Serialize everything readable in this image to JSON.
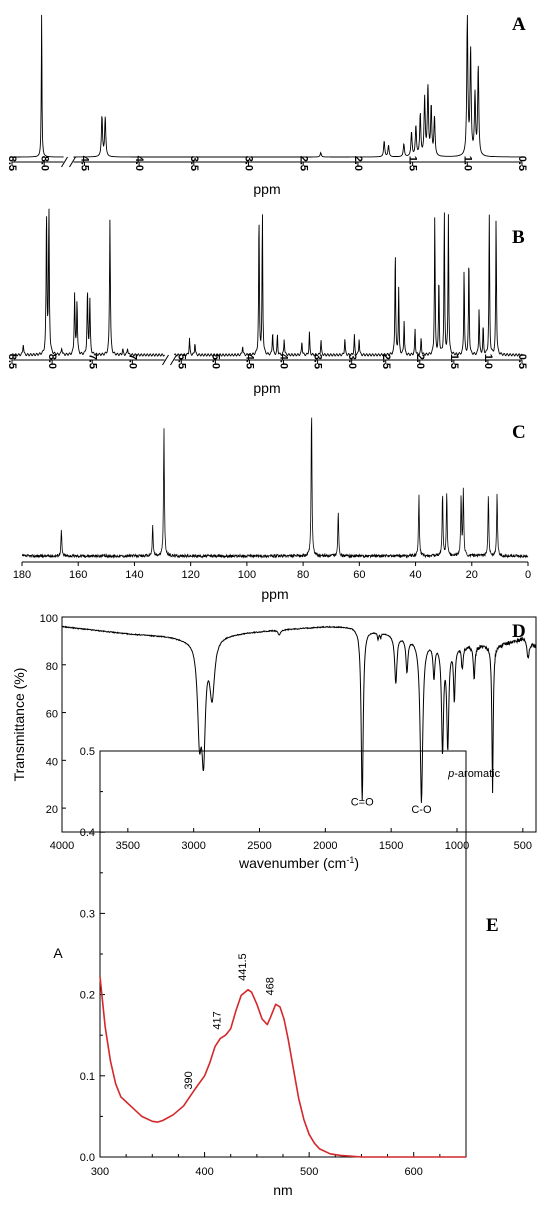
{
  "chart_data": [
    {
      "panel": "A",
      "type": "line",
      "xlabel": "ppm",
      "xlim": [
        8.5,
        0.5
      ],
      "reversed": true,
      "axis_break": [
        7.7,
        4.6
      ],
      "x_ticks": [
        "8.5",
        "8.0",
        "4.5",
        "4.0",
        "3.5",
        "3.0",
        "2.5",
        "2.0",
        "1.5",
        "1.0",
        "0.5"
      ],
      "peaks": [
        {
          "ppm": 8.04,
          "height": 0.98
        },
        {
          "ppm": 4.34,
          "height": 0.28
        },
        {
          "ppm": 4.31,
          "height": 0.27
        },
        {
          "ppm": 2.34,
          "height": 0.03
        },
        {
          "ppm": 1.76,
          "height": 0.11
        },
        {
          "ppm": 1.72,
          "height": 0.08
        },
        {
          "ppm": 1.58,
          "height": 0.09
        },
        {
          "ppm": 1.51,
          "height": 0.17
        },
        {
          "ppm": 1.47,
          "height": 0.21
        },
        {
          "ppm": 1.43,
          "height": 0.29
        },
        {
          "ppm": 1.39,
          "height": 0.4
        },
        {
          "ppm": 1.36,
          "height": 0.48
        },
        {
          "ppm": 1.33,
          "height": 0.34
        },
        {
          "ppm": 1.3,
          "height": 0.27
        },
        {
          "ppm": 1.0,
          "height": 0.95
        },
        {
          "ppm": 0.97,
          "height": 0.73
        },
        {
          "ppm": 0.93,
          "height": 0.42
        },
        {
          "ppm": 0.9,
          "height": 0.62
        }
      ]
    },
    {
      "panel": "B",
      "type": "line",
      "xlabel": "ppm",
      "xlim": [
        8.5,
        0.5
      ],
      "reversed": true,
      "axis_break": [
        6.6,
        5.6
      ],
      "x_ticks": [
        "8.5",
        "8.0",
        "7.5",
        "7.0",
        "5.5",
        "5.0",
        "4.5",
        "4.0",
        "3.5",
        "3.0",
        "2.5",
        "2.0",
        "1.5",
        "1.0",
        "0.5"
      ],
      "peaks": [
        {
          "ppm": 8.36,
          "height": 0.08
        },
        {
          "ppm": 8.07,
          "height": 1.0
        },
        {
          "ppm": 8.04,
          "height": 1.0
        },
        {
          "ppm": 7.88,
          "height": 0.05
        },
        {
          "ppm": 7.72,
          "height": 0.43
        },
        {
          "ppm": 7.69,
          "height": 0.38
        },
        {
          "ppm": 7.56,
          "height": 0.45
        },
        {
          "ppm": 7.53,
          "height": 0.39
        },
        {
          "ppm": 7.28,
          "height": 0.97
        },
        {
          "ppm": 7.12,
          "height": 0.04
        },
        {
          "ppm": 7.06,
          "height": 0.05
        },
        {
          "ppm": 5.38,
          "height": 0.12
        },
        {
          "ppm": 5.3,
          "height": 0.09
        },
        {
          "ppm": 4.6,
          "height": 0.07
        },
        {
          "ppm": 4.36,
          "height": 1.0
        },
        {
          "ppm": 4.31,
          "height": 1.0
        },
        {
          "ppm": 4.16,
          "height": 0.17
        },
        {
          "ppm": 4.09,
          "height": 0.14
        },
        {
          "ppm": 3.99,
          "height": 0.12
        },
        {
          "ppm": 3.73,
          "height": 0.1
        },
        {
          "ppm": 3.62,
          "height": 0.16
        },
        {
          "ppm": 3.45,
          "height": 0.11
        },
        {
          "ppm": 3.1,
          "height": 0.12
        },
        {
          "ppm": 2.96,
          "height": 0.14
        },
        {
          "ppm": 2.89,
          "height": 0.12
        },
        {
          "ppm": 2.36,
          "height": 0.76
        },
        {
          "ppm": 2.31,
          "height": 0.48
        },
        {
          "ppm": 2.23,
          "height": 0.25
        },
        {
          "ppm": 2.07,
          "height": 0.18
        },
        {
          "ppm": 1.98,
          "height": 0.12
        },
        {
          "ppm": 1.78,
          "height": 1.0
        },
        {
          "ppm": 1.72,
          "height": 0.55
        },
        {
          "ppm": 1.64,
          "height": 1.0
        },
        {
          "ppm": 1.58,
          "height": 1.0
        },
        {
          "ppm": 1.35,
          "height": 0.6
        },
        {
          "ppm": 1.28,
          "height": 0.7
        },
        {
          "ppm": 1.13,
          "height": 0.33
        },
        {
          "ppm": 1.07,
          "height": 0.2
        },
        {
          "ppm": 0.98,
          "height": 1.0
        },
        {
          "ppm": 0.88,
          "height": 1.0
        }
      ]
    },
    {
      "panel": "C",
      "type": "line",
      "xlabel": "ppm",
      "xlim": [
        180,
        0
      ],
      "reversed": true,
      "x_ticks": [
        "180",
        "160",
        "140",
        "120",
        "100",
        "80",
        "60",
        "40",
        "20",
        "0"
      ],
      "peaks": [
        {
          "ppm": 166.0,
          "height": 0.18
        },
        {
          "ppm": 133.5,
          "height": 0.21
        },
        {
          "ppm": 129.5,
          "height": 0.88
        },
        {
          "ppm": 77.0,
          "height": 1.0
        },
        {
          "ppm": 67.5,
          "height": 0.31
        },
        {
          "ppm": 38.8,
          "height": 0.42
        },
        {
          "ppm": 30.4,
          "height": 0.43
        },
        {
          "ppm": 28.9,
          "height": 0.43
        },
        {
          "ppm": 23.8,
          "height": 0.41
        },
        {
          "ppm": 23.0,
          "height": 0.44
        },
        {
          "ppm": 14.1,
          "height": 0.42
        },
        {
          "ppm": 11.0,
          "height": 0.43
        }
      ]
    },
    {
      "panel": "D",
      "type": "line",
      "xlabel": "wavenumber (cm",
      "xlabel_sup": "-1",
      "xlabel_tail": ")",
      "ylabel": "Transmittance (%)",
      "xlim": [
        4000,
        400
      ],
      "ylim": [
        10,
        100
      ],
      "reversed": true,
      "x_ticks": [
        4000,
        3500,
        3000,
        2500,
        2000,
        1500,
        1000,
        500
      ],
      "y_ticks": [
        20,
        40,
        60,
        80,
        100
      ],
      "baseline": [
        [
          4000,
          96
        ],
        [
          3500,
          93
        ],
        [
          3200,
          92
        ],
        [
          3050,
          91
        ],
        [
          2700,
          93
        ],
        [
          2400,
          94.5
        ],
        [
          2000,
          96
        ],
        [
          1800,
          96
        ],
        [
          1600,
          94
        ],
        [
          1400,
          92
        ],
        [
          1000,
          88
        ],
        [
          700,
          88
        ],
        [
          500,
          91
        ],
        [
          400,
          88
        ]
      ],
      "dips": [
        {
          "x": 2956,
          "depth": 38,
          "width": 18
        },
        {
          "x": 2925,
          "depth": 44,
          "width": 16
        },
        {
          "x": 2860,
          "depth": 24,
          "width": 22
        },
        {
          "x": 2350,
          "depth": 2,
          "width": 12
        },
        {
          "x": 1720,
          "depth": 72,
          "width": 9
        },
        {
          "x": 1600,
          "depth": 3,
          "width": 5
        },
        {
          "x": 1580,
          "depth": 2,
          "width": 5
        },
        {
          "x": 1465,
          "depth": 20,
          "width": 10
        },
        {
          "x": 1380,
          "depth": 14,
          "width": 9
        },
        {
          "x": 1270,
          "depth": 68,
          "width": 12
        },
        {
          "x": 1175,
          "depth": 14,
          "width": 8
        },
        {
          "x": 1110,
          "depth": 44,
          "width": 9
        },
        {
          "x": 1070,
          "depth": 42,
          "width": 9
        },
        {
          "x": 1020,
          "depth": 22,
          "width": 7
        },
        {
          "x": 960,
          "depth": 9,
          "width": 7
        },
        {
          "x": 870,
          "depth": 14,
          "width": 7
        },
        {
          "x": 730,
          "depth": 61,
          "width": 6
        },
        {
          "x": 460,
          "depth": 7,
          "width": 9
        }
      ],
      "annotations": [
        {
          "text": "C=O",
          "x": 1720,
          "y": 21
        },
        {
          "text": "C-O",
          "x": 1270,
          "y": 18
        },
        {
          "text_italic": "p",
          "text": "-aromatic",
          "x": 870,
          "y": 33
        }
      ]
    },
    {
      "panel": "E",
      "type": "line",
      "xlabel": "nm",
      "ylabel": "A",
      "xlim": [
        300,
        650
      ],
      "ylim": [
        0,
        0.5
      ],
      "x_ticks": [
        300,
        400,
        500,
        600
      ],
      "y_ticks": [
        "0.0",
        "0.1",
        "0.2",
        "0.3",
        "0.4",
        "0.5"
      ],
      "line_color": "#d4282a",
      "series": [
        {
          "x": [
            300,
            305,
            310,
            315,
            320,
            330,
            340,
            350,
            355,
            360,
            370,
            380,
            390,
            400,
            405,
            410,
            415,
            420,
            425,
            430,
            435,
            441.5,
            445,
            450,
            455,
            460,
            463,
            468,
            472,
            476,
            480,
            485,
            490,
            495,
            500,
            505,
            510,
            520,
            530,
            540,
            550,
            570,
            650
          ],
          "y": [
            0.222,
            0.16,
            0.118,
            0.09,
            0.074,
            0.062,
            0.05,
            0.044,
            0.043,
            0.045,
            0.052,
            0.063,
            0.082,
            0.1,
            0.116,
            0.136,
            0.146,
            0.15,
            0.158,
            0.18,
            0.199,
            0.206,
            0.203,
            0.188,
            0.17,
            0.163,
            0.172,
            0.188,
            0.185,
            0.17,
            0.145,
            0.108,
            0.072,
            0.046,
            0.028,
            0.017,
            0.01,
            0.004,
            0.002,
            0.001,
            0.0,
            0.0,
            0.0
          ]
        }
      ],
      "annotations": [
        {
          "text": "390",
          "x": 390,
          "y": 0.078
        },
        {
          "text": "417",
          "x": 417,
          "y": 0.152
        },
        {
          "text": "441.5",
          "x": 441.5,
          "y": 0.212
        },
        {
          "text": "468",
          "x": 468,
          "y": 0.194
        }
      ]
    }
  ]
}
